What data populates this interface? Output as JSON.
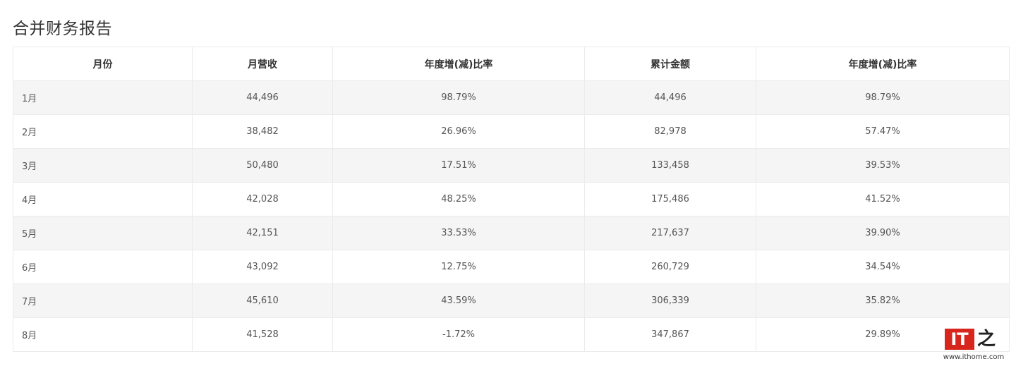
{
  "report": {
    "title": "合并财务报告",
    "headers": [
      "月份",
      "月营收",
      "年度增(减)比率",
      "累计金额",
      "年度增(减)比率"
    ],
    "rows": [
      [
        "1月",
        "44,496",
        "98.79%",
        "44,496",
        "98.79%"
      ],
      [
        "2月",
        "38,482",
        "26.96%",
        "82,978",
        "57.47%"
      ],
      [
        "3月",
        "50,480",
        "17.51%",
        "133,458",
        "39.53%"
      ],
      [
        "4月",
        "42,028",
        "48.25%",
        "175,486",
        "41.52%"
      ],
      [
        "5月",
        "42,151",
        "33.53%",
        "217,637",
        "39.90%"
      ],
      [
        "6月",
        "43,092",
        "12.75%",
        "260,729",
        "34.54%"
      ],
      [
        "7月",
        "45,610",
        "43.59%",
        "306,339",
        "35.82%"
      ],
      [
        "8月",
        "41,528",
        "-1.72%",
        "347,867",
        "29.89%"
      ]
    ]
  },
  "watermark": {
    "logo_text": "IT",
    "logo_char": "之",
    "url": "www.ithome.com",
    "logo_color": "#d7261d"
  }
}
